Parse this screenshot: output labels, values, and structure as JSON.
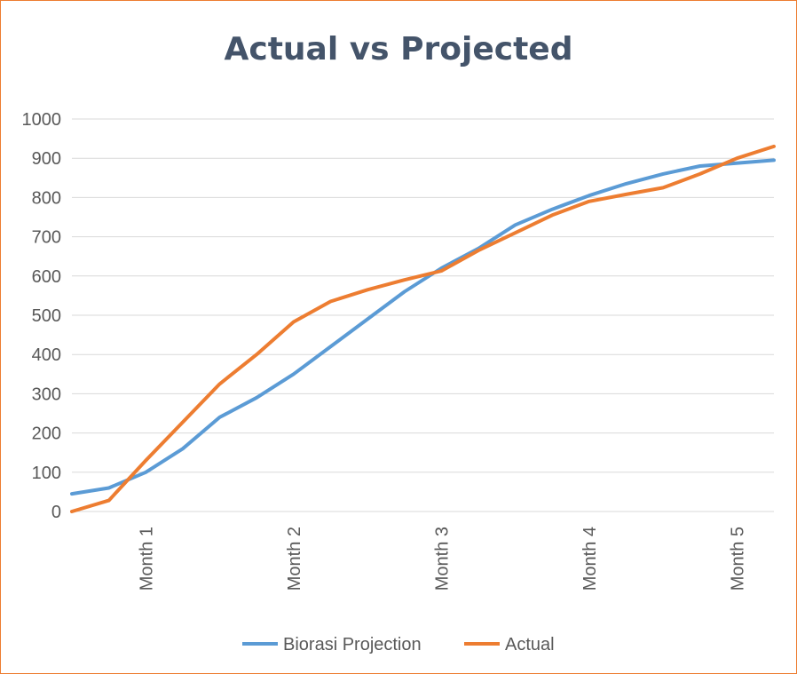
{
  "chart_data": {
    "type": "line",
    "title": "Actual vs Projected",
    "xlabel": "",
    "ylabel": "",
    "ylim": [
      0,
      1000
    ],
    "yticks": [
      0,
      100,
      200,
      300,
      400,
      500,
      600,
      700,
      800,
      900,
      1000
    ],
    "categories": [
      "Month 1",
      "Month 2",
      "Month 3",
      "Month 4",
      "Month 5"
    ],
    "x_range": [
      0,
      4.75
    ],
    "category_positions": [
      0.5,
      1.5,
      2.5,
      3.5,
      4.5
    ],
    "grid": true,
    "legend": "bottom",
    "series": [
      {
        "name": "Biorasi Projection",
        "color": "#5b9bd5",
        "points": [
          [
            0.0,
            45
          ],
          [
            0.25,
            60
          ],
          [
            0.5,
            100
          ],
          [
            0.75,
            160
          ],
          [
            1.0,
            240
          ],
          [
            1.25,
            290
          ],
          [
            1.5,
            350
          ],
          [
            1.75,
            420
          ],
          [
            2.0,
            490
          ],
          [
            2.25,
            560
          ],
          [
            2.5,
            620
          ],
          [
            2.75,
            670
          ],
          [
            3.0,
            730
          ],
          [
            3.25,
            770
          ],
          [
            3.5,
            805
          ],
          [
            3.75,
            835
          ],
          [
            4.0,
            860
          ],
          [
            4.25,
            880
          ],
          [
            4.75,
            895
          ]
        ]
      },
      {
        "name": "Actual",
        "color": "#ed7d31",
        "points": [
          [
            0.0,
            0
          ],
          [
            0.25,
            28
          ],
          [
            0.5,
            130
          ],
          [
            1.0,
            325
          ],
          [
            1.25,
            400
          ],
          [
            1.5,
            483
          ],
          [
            1.75,
            535
          ],
          [
            2.0,
            565
          ],
          [
            2.25,
            590
          ],
          [
            2.5,
            613
          ],
          [
            2.75,
            665
          ],
          [
            3.0,
            710
          ],
          [
            3.25,
            755
          ],
          [
            3.5,
            790
          ],
          [
            3.75,
            808
          ],
          [
            4.0,
            825
          ],
          [
            4.25,
            860
          ],
          [
            4.5,
            900
          ],
          [
            4.75,
            930
          ]
        ]
      }
    ]
  }
}
